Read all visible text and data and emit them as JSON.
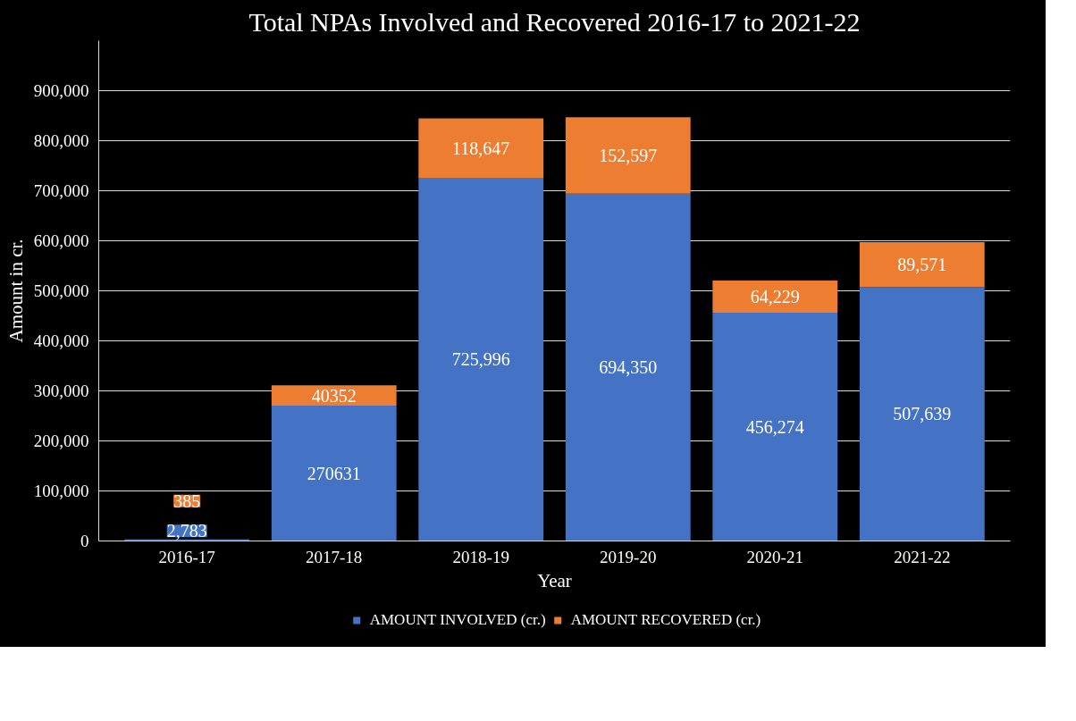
{
  "chart_data": {
    "type": "bar",
    "title": "Total NPAs Involved and Recovered 2016-17 to 2021-22",
    "xlabel": "Year",
    "ylabel": "Amount in cr.",
    "categories": [
      "2016-17",
      "2017-18",
      "2018-19",
      "2019-20",
      "2020-21",
      "2021-22"
    ],
    "stacked": true,
    "series": [
      {
        "name": "AMOUNT INVOLVED (cr.)",
        "color": "#4472c4",
        "values": [
          2783,
          270631,
          725996,
          694350,
          456274,
          507639
        ],
        "value_labels": [
          "2,783",
          "270631",
          "725,996",
          "694,350",
          "456,274",
          "507,639"
        ]
      },
      {
        "name": "AMOUNT RECOVERED (cr.)",
        "color": "#ed7d31",
        "values": [
          385,
          40352,
          118647,
          152597,
          64229,
          89571
        ],
        "value_labels": [
          "385",
          "40352",
          "118,647",
          "152,597",
          "64,229",
          "89,571"
        ]
      }
    ],
    "ylim": [
      0,
      1000000
    ],
    "yticks": [
      {
        "value": 0,
        "label": "0"
      },
      {
        "value": 100000,
        "label": "100,000"
      },
      {
        "value": 200000,
        "label": "200,000"
      },
      {
        "value": 300000,
        "label": "300,000"
      },
      {
        "value": 400000,
        "label": "400,000"
      },
      {
        "value": 500000,
        "label": "500,000"
      },
      {
        "value": 600000,
        "label": "600,000"
      },
      {
        "value": 700000,
        "label": "700,000"
      },
      {
        "value": 800000,
        "label": "800,000"
      },
      {
        "value": 900000,
        "label": "900,000"
      }
    ],
    "grid": "y",
    "legend": "bottom"
  }
}
